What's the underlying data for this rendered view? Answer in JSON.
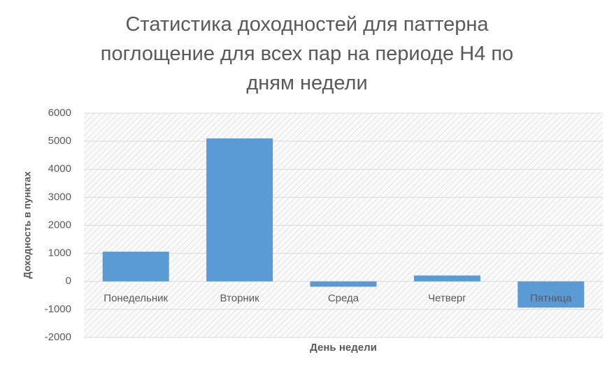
{
  "chart_data": {
    "type": "bar",
    "title": "Статистика доходностей для паттерна поглощение для всех пар на периоде H4 по дням недели",
    "x_label": "День недели",
    "y_label": "Доходность в пунктах",
    "categories": [
      "Понедельник",
      "Вторник",
      "Среда",
      "Четверг",
      "Пятница"
    ],
    "values": [
      1060,
      5100,
      -190,
      210,
      -935
    ],
    "color": "#5b9bd5",
    "ylim": [
      -2000,
      6000
    ],
    "yticks": [
      -2000,
      -1000,
      0,
      1000,
      2000,
      3000,
      4000,
      5000,
      6000
    ],
    "grid": true
  }
}
